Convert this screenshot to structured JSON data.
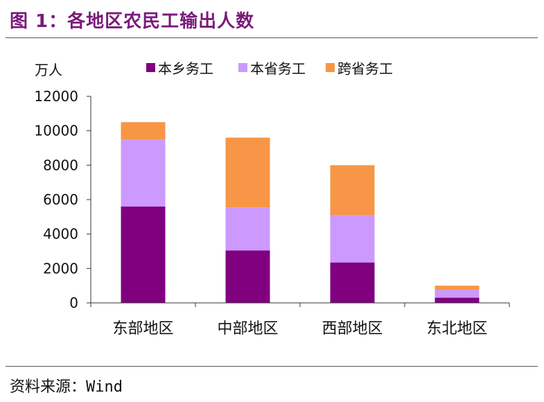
{
  "figure": {
    "title": "图 1：各地区农民工输出人数",
    "source": "资料来源：Wind"
  },
  "chart_data": {
    "type": "stacked-bar",
    "title": "各地区农民工输出人数",
    "ylabel": "万人",
    "xlabel": "",
    "ylim": [
      0,
      12000
    ],
    "yticks": [
      0,
      2000,
      4000,
      6000,
      8000,
      10000,
      12000
    ],
    "categories": [
      "东部地区",
      "中部地区",
      "西部地区",
      "东北地区"
    ],
    "legend_position": "top",
    "series": [
      {
        "name": "本乡务工",
        "color": "#800080",
        "values": [
          5600,
          3050,
          2350,
          300
        ]
      },
      {
        "name": "本省务工",
        "color": "#cc99ff",
        "values": [
          3900,
          2500,
          2750,
          450
        ]
      },
      {
        "name": "跨省务工",
        "color": "#f79646",
        "values": [
          1000,
          4050,
          2900,
          250
        ]
      }
    ]
  }
}
